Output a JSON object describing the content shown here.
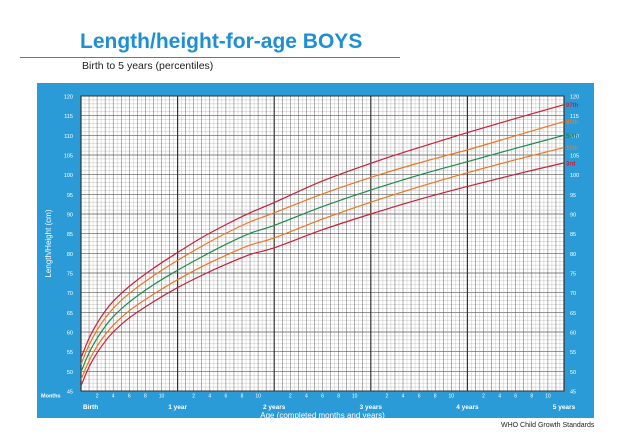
{
  "header": {
    "title": "Length/height-for-age BOYS",
    "subtitle": "Birth to 5 years (percentiles)"
  },
  "footer": {
    "credit": "WHO Child Growth Standards"
  },
  "colors": {
    "title": "#1f8fd4",
    "panel": "#2a9bd7",
    "grid": "#9a9a9a",
    "grid_major": "#555555",
    "p3": "#c8203a",
    "p15": "#ee7622",
    "p50": "#1e8c4a",
    "p85": "#ee7622",
    "p97": "#c8203a"
  },
  "chart_data": {
    "type": "line",
    "title": "Length/height-for-age BOYS",
    "subtitle": "Birth to 5 years (percentiles)",
    "ylabel": "Length/Height (cm)",
    "xlabel": "Age (completed months and years)",
    "months_label": "Months",
    "xlim": [
      0,
      60
    ],
    "ylim": [
      45,
      120
    ],
    "y_ticks": [
      45,
      50,
      55,
      60,
      65,
      70,
      75,
      80,
      85,
      90,
      95,
      100,
      105,
      110,
      115,
      120
    ],
    "x_month_ticks": [
      {
        "m": 2,
        "label": "2"
      },
      {
        "m": 4,
        "label": "4"
      },
      {
        "m": 6,
        "label": "6"
      },
      {
        "m": 8,
        "label": "8"
      },
      {
        "m": 10,
        "label": "10"
      },
      {
        "m": 14,
        "label": "2"
      },
      {
        "m": 16,
        "label": "4"
      },
      {
        "m": 18,
        "label": "6"
      },
      {
        "m": 20,
        "label": "8"
      },
      {
        "m": 22,
        "label": "10"
      },
      {
        "m": 26,
        "label": "2"
      },
      {
        "m": 28,
        "label": "4"
      },
      {
        "m": 30,
        "label": "6"
      },
      {
        "m": 32,
        "label": "8"
      },
      {
        "m": 34,
        "label": "10"
      },
      {
        "m": 38,
        "label": "2"
      },
      {
        "m": 40,
        "label": "4"
      },
      {
        "m": 42,
        "label": "6"
      },
      {
        "m": 44,
        "label": "8"
      },
      {
        "m": 46,
        "label": "10"
      },
      {
        "m": 50,
        "label": "2"
      },
      {
        "m": 52,
        "label": "4"
      },
      {
        "m": 54,
        "label": "6"
      },
      {
        "m": 56,
        "label": "8"
      },
      {
        "m": 58,
        "label": "10"
      }
    ],
    "x_year_ticks": [
      {
        "m": 0,
        "label": "Birth"
      },
      {
        "m": 12,
        "label": "1 year"
      },
      {
        "m": 24,
        "label": "2 years"
      },
      {
        "m": 36,
        "label": "3 years"
      },
      {
        "m": 48,
        "label": "4 years"
      },
      {
        "m": 60,
        "label": "5 years"
      }
    ],
    "series": [
      {
        "name": "3rd",
        "color_key": "p3",
        "points": [
          [
            0,
            46.3
          ],
          [
            1,
            51.1
          ],
          [
            2,
            54.7
          ],
          [
            3,
            57.6
          ],
          [
            4,
            60.0
          ],
          [
            6,
            63.6
          ],
          [
            9,
            67.7
          ],
          [
            12,
            71.3
          ],
          [
            15,
            74.4
          ],
          [
            18,
            77.2
          ],
          [
            21,
            79.7
          ],
          [
            24,
            81.4
          ],
          [
            30,
            86.0
          ],
          [
            36,
            90.0
          ],
          [
            42,
            93.7
          ],
          [
            48,
            97.0
          ],
          [
            54,
            100.1
          ],
          [
            60,
            103.0
          ]
        ]
      },
      {
        "name": "15th",
        "color_key": "p15",
        "points": [
          [
            0,
            47.9
          ],
          [
            1,
            52.7
          ],
          [
            2,
            56.4
          ],
          [
            3,
            59.3
          ],
          [
            4,
            61.7
          ],
          [
            6,
            65.4
          ],
          [
            9,
            69.6
          ],
          [
            12,
            73.3
          ],
          [
            15,
            76.6
          ],
          [
            18,
            79.5
          ],
          [
            21,
            82.1
          ],
          [
            24,
            83.9
          ],
          [
            30,
            88.7
          ],
          [
            36,
            93.0
          ],
          [
            42,
            96.9
          ],
          [
            48,
            100.5
          ],
          [
            54,
            103.8
          ],
          [
            60,
            106.9
          ]
        ]
      },
      {
        "name": "50th",
        "color_key": "p50",
        "points": [
          [
            0,
            49.9
          ],
          [
            1,
            54.7
          ],
          [
            2,
            58.4
          ],
          [
            3,
            61.4
          ],
          [
            4,
            63.9
          ],
          [
            6,
            67.6
          ],
          [
            9,
            72.0
          ],
          [
            12,
            75.7
          ],
          [
            15,
            79.1
          ],
          [
            18,
            82.3
          ],
          [
            21,
            85.1
          ],
          [
            24,
            87.1
          ],
          [
            30,
            91.9
          ],
          [
            36,
            96.1
          ],
          [
            42,
            99.9
          ],
          [
            48,
            103.3
          ],
          [
            54,
            106.7
          ],
          [
            60,
            110.0
          ]
        ]
      },
      {
        "name": "85th",
        "color_key": "p85",
        "points": [
          [
            0,
            51.8
          ],
          [
            1,
            56.7
          ],
          [
            2,
            60.5
          ],
          [
            3,
            63.5
          ],
          [
            4,
            66.0
          ],
          [
            6,
            69.8
          ],
          [
            9,
            74.3
          ],
          [
            12,
            78.2
          ],
          [
            15,
            81.8
          ],
          [
            18,
            85.1
          ],
          [
            21,
            88.0
          ],
          [
            24,
            90.3
          ],
          [
            30,
            95.1
          ],
          [
            36,
            99.3
          ],
          [
            42,
            103.0
          ],
          [
            48,
            106.3
          ],
          [
            54,
            109.9
          ],
          [
            60,
            113.5
          ]
        ]
      },
      {
        "name": "97th",
        "color_key": "p97",
        "points": [
          [
            0,
            53.4
          ],
          [
            1,
            58.4
          ],
          [
            2,
            62.2
          ],
          [
            3,
            65.3
          ],
          [
            4,
            67.8
          ],
          [
            6,
            71.6
          ],
          [
            9,
            76.2
          ],
          [
            12,
            80.2
          ],
          [
            15,
            84.0
          ],
          [
            18,
            87.3
          ],
          [
            21,
            90.3
          ],
          [
            24,
            92.9
          ],
          [
            30,
            98.4
          ],
          [
            36,
            102.9
          ],
          [
            42,
            106.9
          ],
          [
            48,
            110.7
          ],
          [
            54,
            114.3
          ],
          [
            60,
            117.8
          ]
        ]
      }
    ]
  }
}
